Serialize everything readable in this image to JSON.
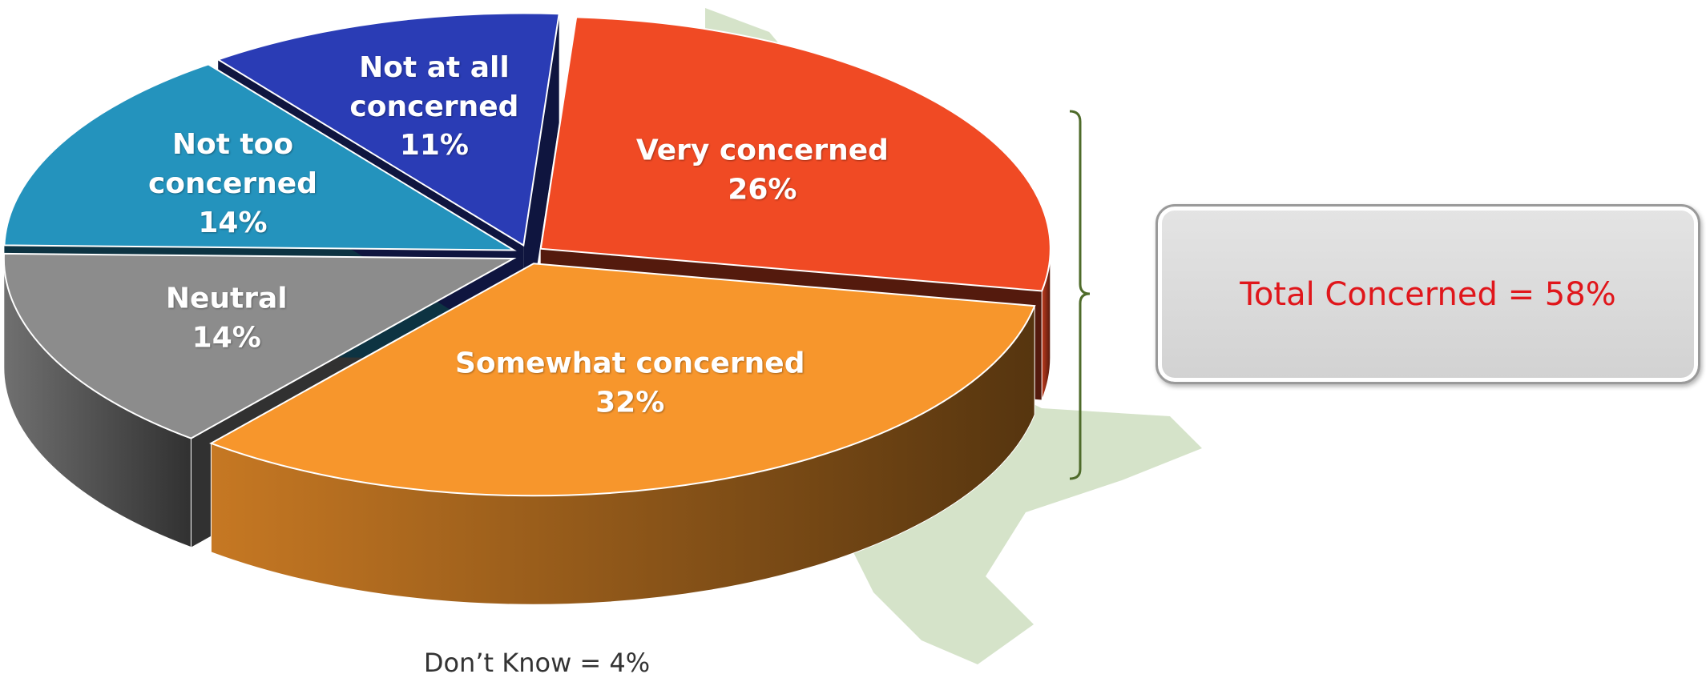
{
  "chart_data": {
    "type": "pie3d",
    "categories": [
      "Very concerned",
      "Somewhat concerned",
      "Neutral",
      "Not too concerned",
      "Not at all concerned"
    ],
    "values": [
      26,
      32,
      14,
      14,
      11
    ],
    "value_labels": [
      "26%",
      "32%",
      "14%",
      "14%",
      "11%"
    ],
    "colors": [
      "#f04a24",
      "#f7962c",
      "#8c8c8c",
      "#2493bd",
      "#2a3cb5"
    ],
    "annotations": [
      "Don’t Know = 4%",
      "Total Concerned = 58%"
    ]
  }
}
